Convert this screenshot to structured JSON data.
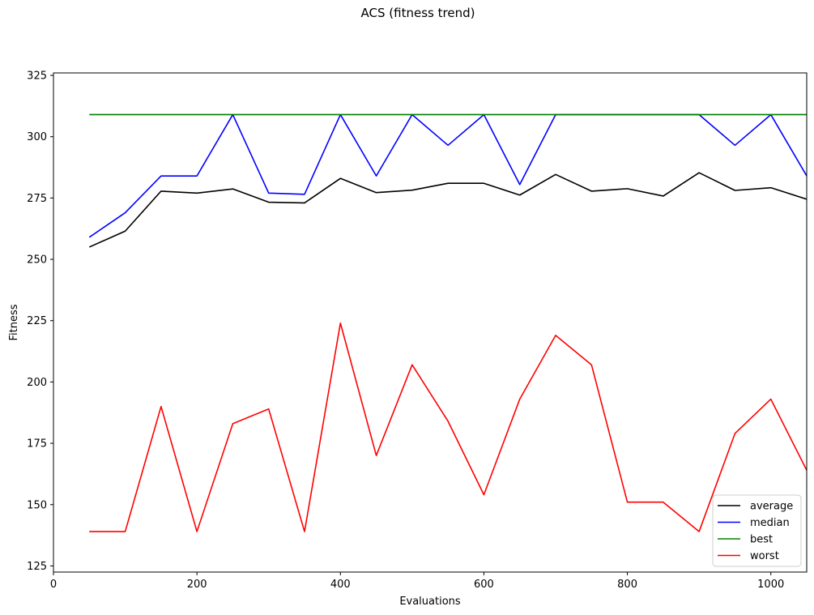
{
  "chart_data": {
    "type": "line",
    "title": "ACS (fitness trend)",
    "xlabel": "Evaluations",
    "ylabel": "Fitness",
    "xlim": [
      0,
      1050
    ],
    "ylim": [
      122.5,
      326
    ],
    "xticks": [
      0,
      200,
      400,
      600,
      800,
      1000
    ],
    "yticks": [
      125,
      150,
      175,
      200,
      225,
      250,
      275,
      300,
      325
    ],
    "grid": false,
    "legend_position": "lower-right",
    "x": [
      50,
      100,
      150,
      200,
      250,
      300,
      350,
      400,
      450,
      500,
      550,
      600,
      650,
      700,
      750,
      800,
      850,
      900,
      950,
      1000,
      1050
    ],
    "series": [
      {
        "name": "average",
        "color": "#000000",
        "values": [
          255,
          261.5,
          277.8,
          277,
          278.7,
          273.3,
          273,
          283,
          277.2,
          278.2,
          281,
          281,
          276.2,
          284.6,
          277.8,
          278.8,
          275.8,
          285.3,
          278.1,
          279.2,
          274.5
        ]
      },
      {
        "name": "median",
        "color": "#0000ff",
        "values": [
          259,
          269,
          284,
          284,
          309,
          277,
          276.5,
          309,
          284,
          309,
          296.5,
          309,
          280.5,
          309,
          309,
          309,
          309,
          309,
          296.5,
          309,
          284
        ]
      },
      {
        "name": "best",
        "color": "#008000",
        "values": [
          309,
          309,
          309,
          309,
          309,
          309,
          309,
          309,
          309,
          309,
          309,
          309,
          309,
          309,
          309,
          309,
          309,
          309,
          309,
          309,
          309
        ]
      },
      {
        "name": "worst",
        "color": "#ff0000",
        "values": [
          139,
          139,
          190,
          139,
          183,
          189,
          139,
          224,
          170,
          207,
          184,
          154,
          193,
          219,
          207,
          151,
          151,
          139,
          179,
          193,
          164
        ]
      }
    ]
  }
}
